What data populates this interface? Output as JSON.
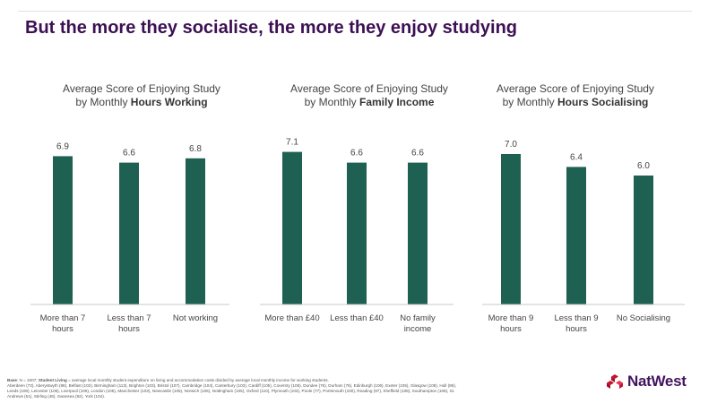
{
  "slide": {
    "title": "But the more they socialise, the more they enjoy studying"
  },
  "colors": {
    "bar": "#1e6152",
    "title": "#3c1053",
    "axis": "#c8c8c8",
    "brand": "#42145f",
    "logo_red": "#c8102e"
  },
  "chart_data": [
    {
      "type": "bar",
      "title_line1": "Average Score of Enjoying Study",
      "title_prefix": "by Monthly",
      "title_bold": "Hours Working",
      "categories": [
        [
          "More than 7",
          "hours"
        ],
        [
          "Less than 7",
          "hours"
        ],
        [
          "Not working"
        ]
      ],
      "values": [
        6.9,
        6.6,
        6.8
      ],
      "ylim": [
        0,
        7.5
      ]
    },
    {
      "type": "bar",
      "title_line1": "Average Score of Enjoying Study",
      "title_prefix": "by Monthly",
      "title_bold": "Family Income",
      "categories": [
        [
          "More than £40"
        ],
        [
          "Less than £40"
        ],
        [
          "No family",
          "income"
        ]
      ],
      "values": [
        7.1,
        6.6,
        6.6
      ],
      "ylim": [
        0,
        7.5
      ]
    },
    {
      "type": "bar",
      "title_line1": "Average Score of Enjoying Study",
      "title_prefix": "by Monthly",
      "title_bold": "Hours Socialising",
      "categories": [
        [
          "More than 9",
          "hours"
        ],
        [
          "Less than 9",
          "hours"
        ],
        [
          "No Socialising"
        ]
      ],
      "values": [
        7.0,
        6.4,
        6.0
      ],
      "ylim": [
        0,
        7.5
      ]
    }
  ],
  "footnote": {
    "base_label": "Base",
    "base_text": ": N = 3407;",
    "living_label": "Student Living",
    "living_text": " = average local monthly student expenditure on living and accommodation costs divided by average local monthly income for working students.",
    "towns_line1": "Aberdeen (73), Aberystwyth (88), Belfast (102), Birmingham (113), Brighton (103), Bristol (107), Cambridge (104), Canterbury (103), Cardiff (105), Coventry (106), Dundee (76), Durham (76), Edinburgh (106), Exeter (105), Glasgow (108), Hull (86),",
    "towns_line2": "Leeds (108), Leicester (105), Liverpool (105), London (105), Manchester (103), Newcastle (105), Norwich (105), Nottingham (105), Oxford (110), Plymouth (103), Poole (77), Portsmouth (100), Reading (97), Sheffield (108), Southampton (106), St.",
    "towns_line3": "Andrews (51), Stirling (48), Swansea (92), York (104)."
  },
  "brand": {
    "name": "NatWest",
    "logo_icon": "natwest-cubes-icon"
  }
}
